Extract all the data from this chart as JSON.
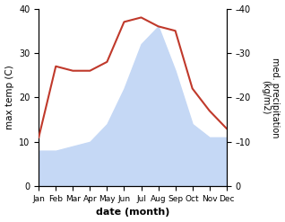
{
  "months": [
    "Jan",
    "Feb",
    "Mar",
    "Apr",
    "May",
    "Jun",
    "Jul",
    "Aug",
    "Sep",
    "Oct",
    "Nov",
    "Dec"
  ],
  "temperature": [
    11,
    27,
    26,
    26,
    28,
    37,
    38,
    36,
    35,
    22,
    17,
    13
  ],
  "precipitation": [
    8,
    8,
    9,
    10,
    14,
    22,
    32,
    36,
    26,
    14,
    11,
    11
  ],
  "temp_color": "#c0392b",
  "precip_fill_color": "#c5d8f5",
  "ylim": [
    0,
    40
  ],
  "xlabel": "date (month)",
  "ylabel_left": "max temp (C)",
  "ylabel_right": "med. precipitation\n(kg/m2)",
  "bg_color": "#ffffff"
}
